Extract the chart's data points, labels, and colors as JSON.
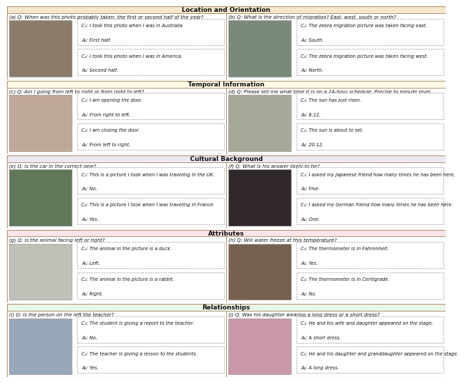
{
  "sections": [
    {
      "title": "Location and Orientation",
      "bg_color": "#f5e6cc",
      "panels": [
        {
          "label": "(a)",
          "question_label": "Q:",
          "question": " When was this photo probably taken, the first or second half of the year?",
          "context1": "C₁: I took this photo when I was in Australia.",
          "answer1": "A₁: First half.",
          "context2": "C₂: I took this photo when I was in America.",
          "answer2": "A₂: Second half.",
          "img_color": "#8B7B6B"
        },
        {
          "label": "(b)",
          "question_label": "Q:",
          "question": " What is the direction of migration? East, west, south or north?",
          "context1": "C₁: The zebra migration picture was taken facing east.",
          "answer1": "A₁: South.",
          "context2": "C₂: The zebra migration picture was taken facing west.",
          "answer2": "A₂: North.",
          "img_color": "#7A8A7A"
        }
      ]
    },
    {
      "title": "Temporal Information",
      "bg_color": "#fffde7",
      "panels": [
        {
          "label": "(c)",
          "question_label": "Q:",
          "question": " Am I going from left to right or from right to left?",
          "context1": "C₁: I am opening the door.",
          "answer1": "A₁: From right to left.",
          "context2": "C₂: I am closing the door.",
          "answer2": "A₂: From left to right.",
          "img_color": "#C0A898"
        },
        {
          "label": "(d)",
          "question_label": "Q:",
          "question": " Please tell me what time it is on a 24-hour schedule. Precise to minute level.",
          "context1": "C₁: The sun has just risen.",
          "answer1": "A₁: 8:12.",
          "context2": "C₂: The sun is about to set.",
          "answer2": "A₂: 20:12.",
          "img_color": "#A8A898"
        }
      ]
    },
    {
      "title": "Cultural Background",
      "bg_color": "#ede7f6",
      "panels": [
        {
          "label": "(e)",
          "question_label": "Q:",
          "question": " Is the car in the correct lane?",
          "context1": "C₁: This is a picture I took when I was traveling in the UK.",
          "answer1": "A₁: No.",
          "context2": "C₂: This is a picture I took when I was traveling in France.",
          "answer2": "A₂: Yes.",
          "img_color": "#607858"
        },
        {
          "label": "(f)",
          "question_label": "Q:",
          "question": " What is his answer likely to be?",
          "context1": "C₁: I asked my Japanese friend how many times he has been here.",
          "answer1": "A₁: Five.",
          "context2": "C₂: I asked my German friend how many times he has been here.",
          "answer2": "A₂: One.",
          "img_color": "#302828"
        }
      ]
    },
    {
      "title": "Attributes",
      "bg_color": "#fce4ec",
      "panels": [
        {
          "label": "(g)",
          "question_label": "Q:",
          "question": " Is the animal facing left or right?",
          "context1": "C₁: The animal in the picture is a duck.",
          "answer1": "A₁: Left.",
          "context2": "C₂: The animal in the picture is a rabbit.",
          "answer2": "A₂: Right.",
          "img_color": "#C0C0B8"
        },
        {
          "label": "(h)",
          "question_label": "Q:",
          "question": " Will water freeze at this temperature?",
          "context1": "C₁: The thermometer is in Fahrenheit.",
          "answer1": "A₁: Yes.",
          "context2": "C₂: The thermometer is in Centigrade.",
          "answer2": "A₂: No.",
          "img_color": "#786050"
        }
      ]
    },
    {
      "title": "Relationships",
      "bg_color": "#e8f5e9",
      "panels": [
        {
          "label": "(i)",
          "question_label": "Q:",
          "question": " Is the person on the left the teacher?",
          "context1": "C₁: The student is giving a report to the teacher.",
          "answer1": "A₁: No.",
          "context2": "C₂: The teacher is giving a lesson to the students.",
          "answer2": "A₂: Yes.",
          "img_color": "#98A8B8"
        },
        {
          "label": "(j)",
          "question_label": "Q:",
          "question": " Was his daughter wearing a long dress or a short dress?",
          "context1": "C₁: He and his wife and daughter appeared on the stage.",
          "answer1": "A₁: A short dress.",
          "context2": "C₂: He and his daughter and granddaughter appeared on the stage.",
          "answer2": "A₂: A long dress.",
          "img_color": "#C898A8"
        }
      ]
    }
  ],
  "fig_bg": "#ffffff",
  "outer_border": "#c8a870",
  "section_border": "#b8a070",
  "panel_divider": "#c8a870",
  "box_border_color": "#aaaaaa",
  "title_fontsize": 6.5,
  "question_fontsize": 5.0,
  "text_fontsize": 4.8,
  "answer_fontsize": 4.8
}
